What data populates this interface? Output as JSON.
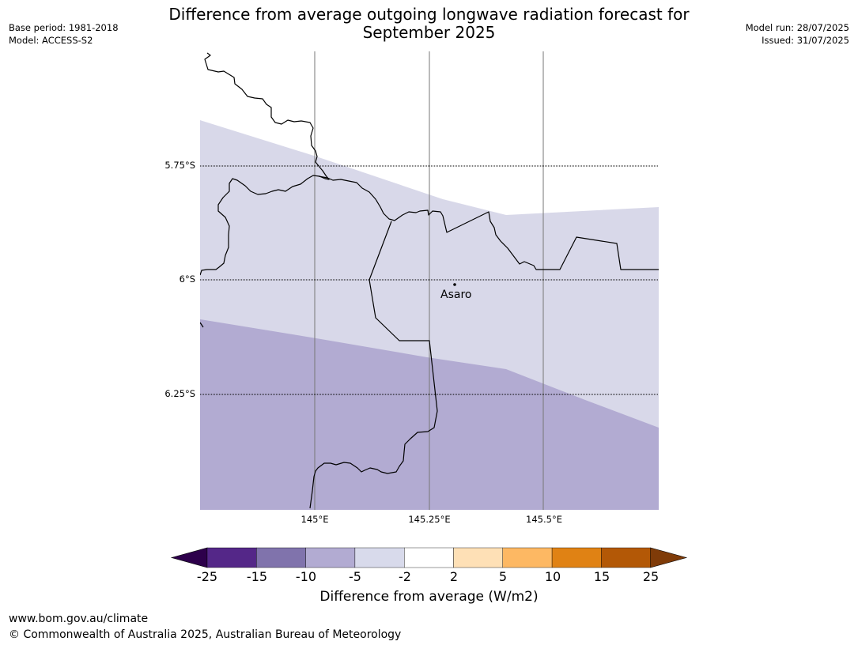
{
  "title": {
    "line1": "Difference from average outgoing longwave radiation forecast for",
    "line2": "September 2025"
  },
  "meta": {
    "base_period": "Base period: 1981-2018",
    "model": "Model: ACCESS-S2",
    "model_run": "Model run: 28/07/2025",
    "issued": "Issued: 31/07/2025"
  },
  "map": {
    "latitude_labels": [
      "5.75°S",
      "6°S",
      "6.25°S"
    ],
    "longitude_labels": [
      "145°E",
      "145.25°E",
      "145.5°E"
    ],
    "place": {
      "name": "Asaro"
    },
    "colors": {
      "band_minus5_minus2": "#d8d8e9",
      "band_minus10_minus5": "#b2abd2",
      "border": "#000000",
      "grid": "#777777"
    }
  },
  "colorbar": {
    "title": "Difference from average (W/m2)",
    "ticks": [
      "-25",
      "-15",
      "-10",
      "-5",
      "-2",
      "2",
      "5",
      "10",
      "15",
      "25"
    ],
    "colors": [
      "#2d004b",
      "#542788",
      "#8073ac",
      "#b2abd2",
      "#d8daeb",
      "#ffffff",
      "#fee0b6",
      "#fdb863",
      "#e08214",
      "#b35806",
      "#7f3b08"
    ]
  },
  "footer": {
    "url": "www.bom.gov.au/climate",
    "copyright": "© Commonwealth of Australia 2025, Australian Bureau of Meteorology"
  }
}
